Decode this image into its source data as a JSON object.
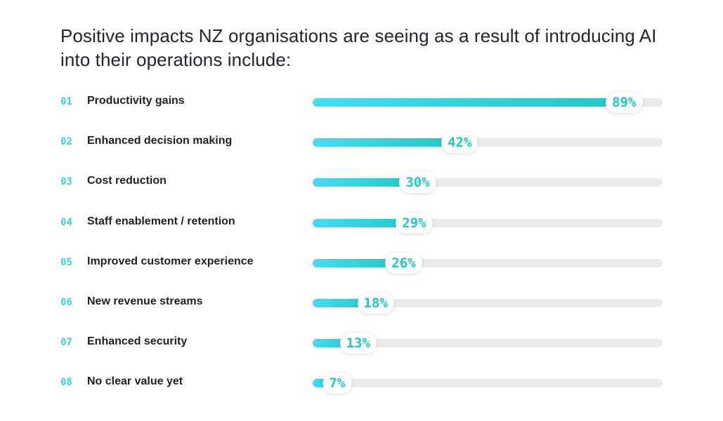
{
  "title": "Positive impacts NZ organisations are seeing as a result of introducing AI into their operations include:",
  "chart_data": {
    "type": "bar",
    "orientation": "horizontal",
    "title": "Positive impacts NZ organisations are seeing as a result of introducing AI into their operations include:",
    "xlim": [
      0,
      100
    ],
    "grid": false,
    "legend": "none",
    "categories": [
      "Productivity gains",
      "Enhanced decision making",
      "Cost reduction",
      "Staff enablement / retention",
      "Improved customer experience",
      "New revenue streams",
      "Enhanced security",
      "No clear value yet"
    ],
    "numbers": [
      "01",
      "02",
      "03",
      "04",
      "05",
      "06",
      "07",
      "08"
    ],
    "values": [
      89,
      42,
      30,
      29,
      26,
      18,
      13,
      7
    ],
    "data_labels": [
      "89%",
      "42%",
      "30%",
      "29%",
      "26%",
      "18%",
      "13%",
      "7%"
    ]
  },
  "colors": {
    "accent": "#1fc9c3",
    "gradient_start": "#45dcf4",
    "gradient_end": "#1fc9c3",
    "number": "#3dd3e6",
    "track": "#ebebed"
  }
}
